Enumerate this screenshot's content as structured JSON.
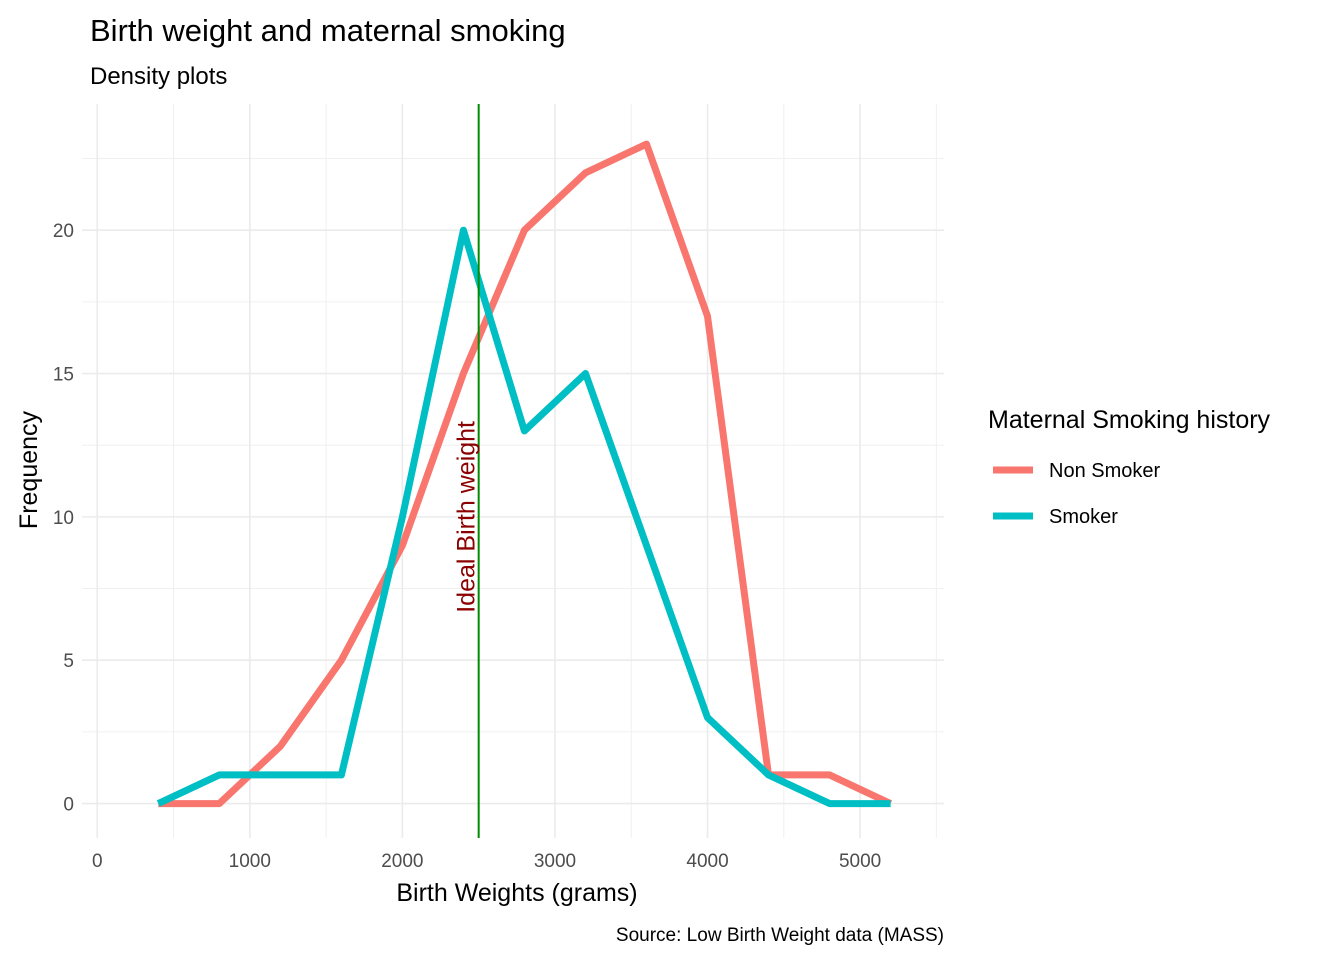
{
  "chart_data": {
    "type": "line",
    "title": "Birth weight and maternal smoking",
    "subtitle": "Density plots",
    "xlabel": "Birth Weights (grams)",
    "ylabel": "Frequency",
    "caption": "Source: Low Birth Weight data (MASS)",
    "xlim": [
      -100,
      5550
    ],
    "ylim": [
      -1.2,
      24.4
    ],
    "x_ticks": [
      0,
      1000,
      2000,
      3000,
      4000,
      5000
    ],
    "x_tick_labels": [
      "0",
      "1000",
      "2000",
      "3000",
      "4000",
      "5000"
    ],
    "x_minor_ticks": [
      500,
      1500,
      2500,
      3500,
      4500,
      5500
    ],
    "y_ticks": [
      0,
      5,
      10,
      15,
      20
    ],
    "y_tick_labels": [
      "0",
      "5",
      "10",
      "15",
      "20"
    ],
    "y_minor_ticks": [
      2.5,
      7.5,
      12.5,
      17.5,
      22.5
    ],
    "grid": true,
    "legend": {
      "title": "Maternal Smoking history",
      "position": "right"
    },
    "series": [
      {
        "name": "Non Smoker",
        "color": "#F8766D",
        "x": [
          400,
          800,
          1200,
          1600,
          2000,
          2400,
          2800,
          3200,
          3600,
          4000,
          4400,
          4800,
          5200
        ],
        "values": [
          0,
          0,
          2,
          5,
          9,
          15,
          20,
          22,
          23,
          17,
          1,
          1,
          0
        ]
      },
      {
        "name": "Smoker",
        "color": "#00BFC4",
        "x": [
          400,
          800,
          1200,
          1600,
          2000,
          2400,
          2800,
          3200,
          3600,
          4000,
          4400,
          4800,
          5200
        ],
        "values": [
          0,
          1,
          1,
          1,
          10,
          20,
          13,
          15,
          9,
          3,
          1,
          0,
          0
        ]
      }
    ],
    "reference_line": {
      "x": 2500,
      "label": "Ideal Birth weight",
      "color": "#008B00",
      "label_color": "#8B0000"
    }
  }
}
